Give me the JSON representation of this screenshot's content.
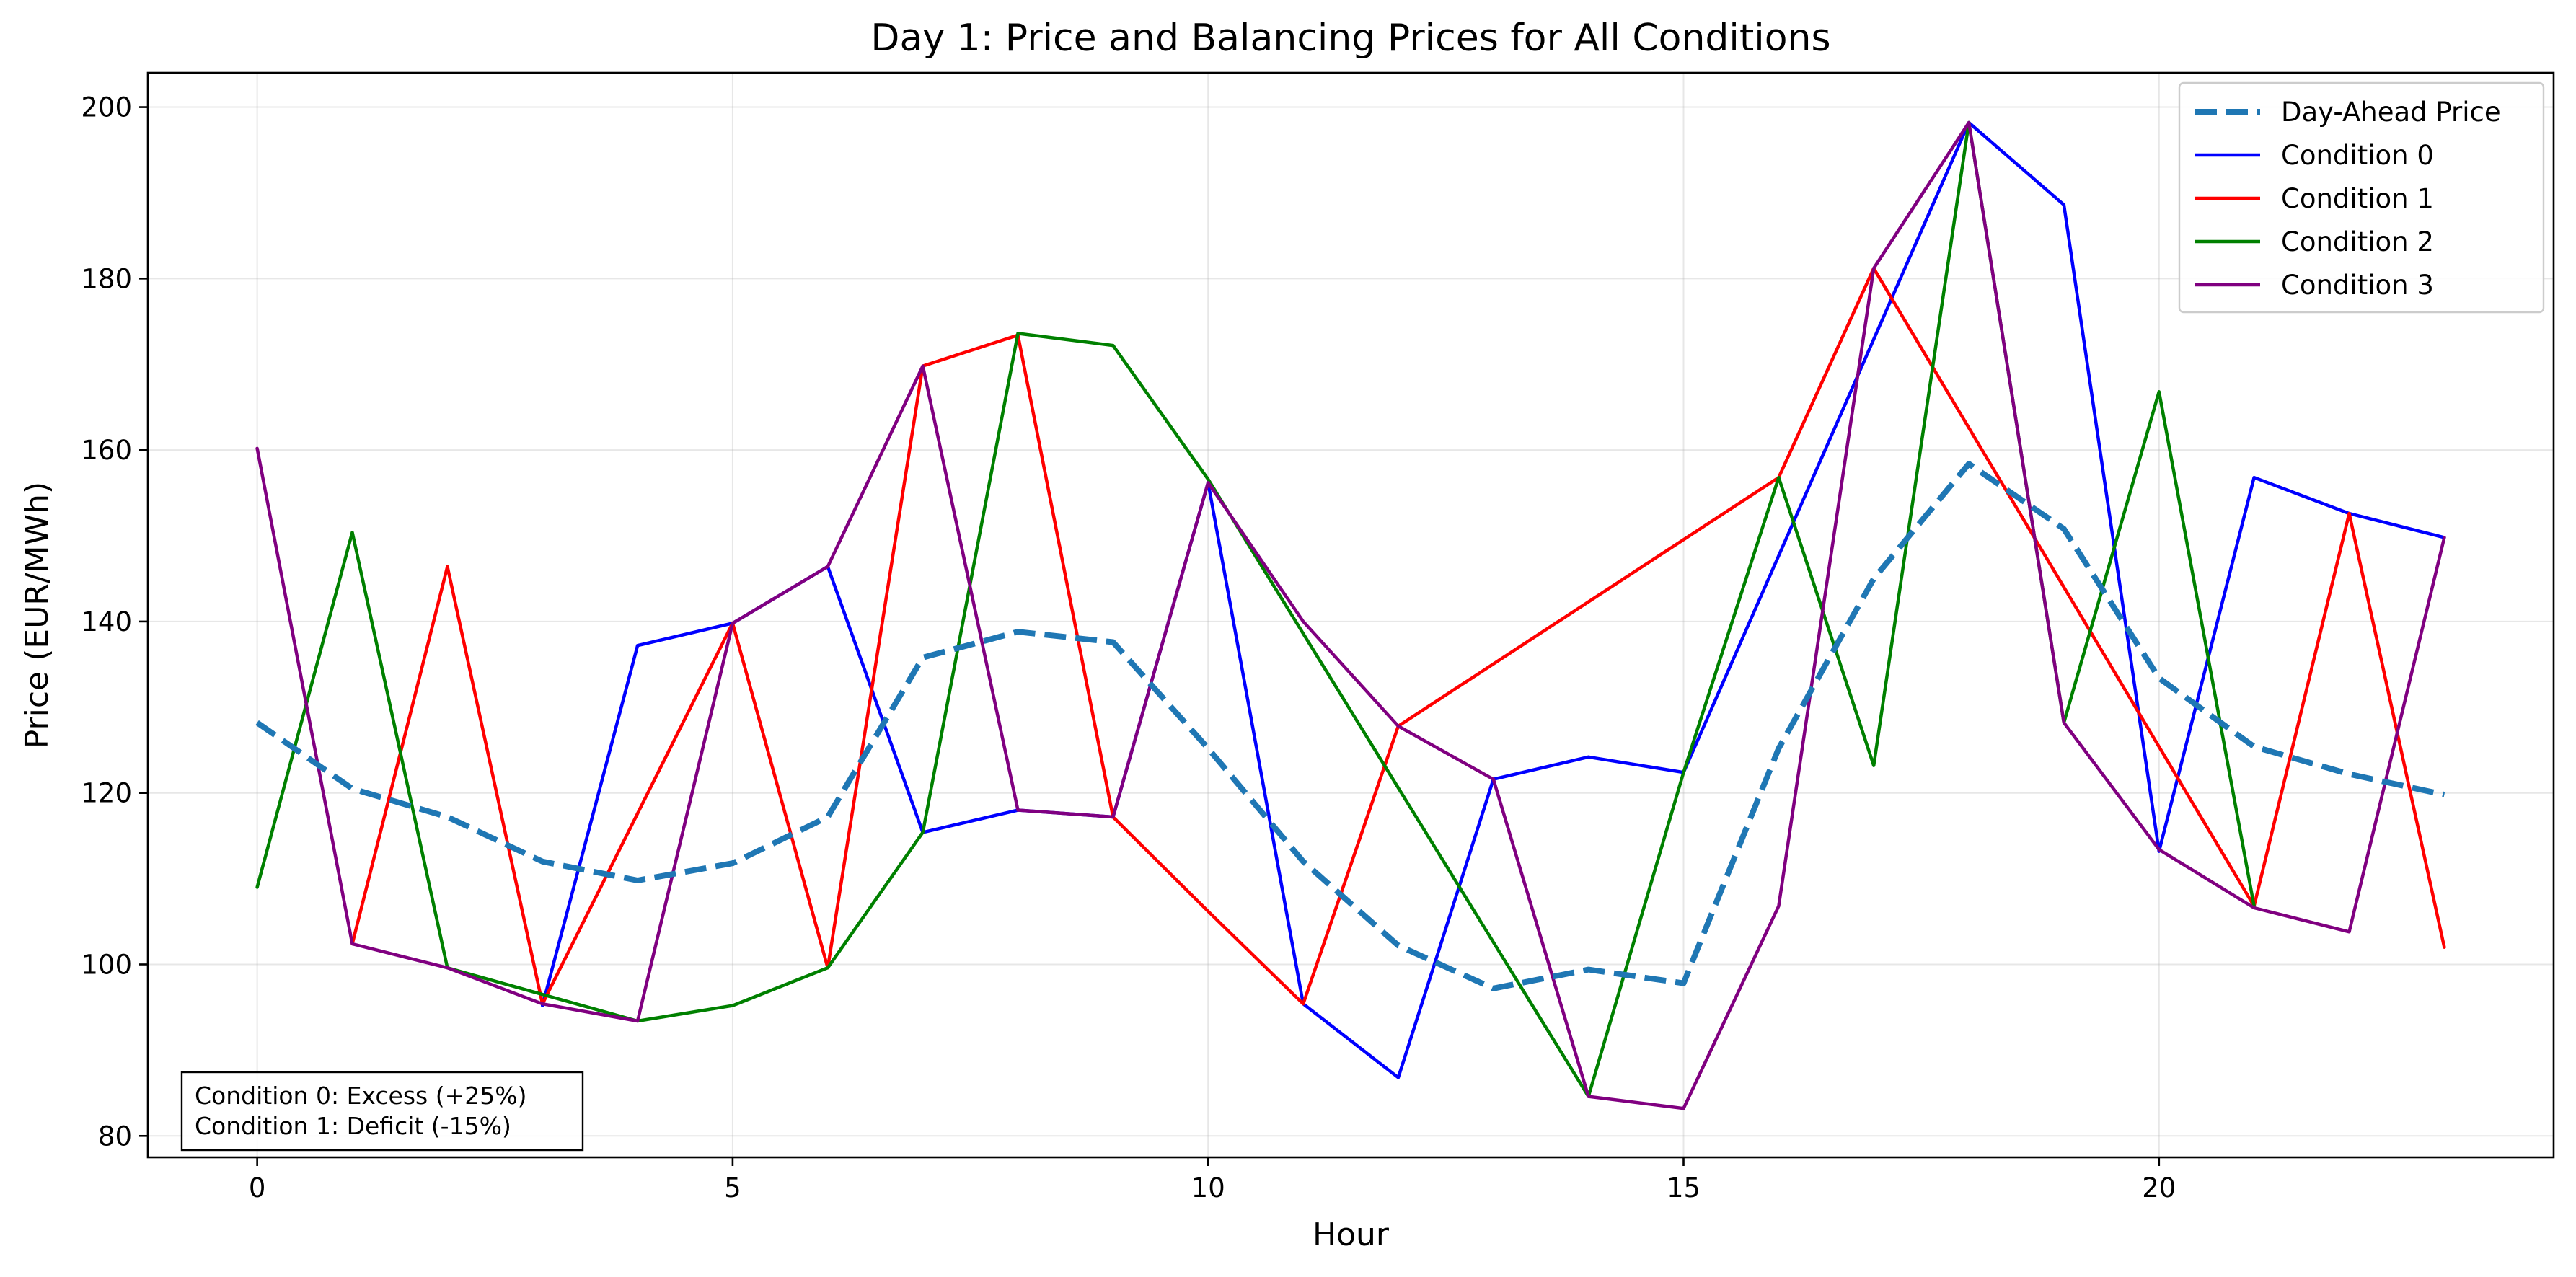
{
  "chart_data": {
    "type": "line",
    "title": "Day 1: Price and Balancing Prices for All Conditions",
    "xlabel": "Hour",
    "ylabel": "Price (EUR/MWh)",
    "xlim": [
      -1.15,
      24.15
    ],
    "ylim": [
      77.5,
      204
    ],
    "xticks": [
      0,
      5,
      10,
      15,
      20
    ],
    "yticks": [
      80,
      100,
      120,
      140,
      160,
      180,
      200
    ],
    "grid": true,
    "legend_position": "top-right",
    "x": [
      0,
      1,
      2,
      3,
      4,
      5,
      6,
      7,
      8,
      9,
      10,
      11,
      12,
      13,
      14,
      15,
      16,
      17,
      18,
      19,
      20,
      21,
      22,
      23
    ],
    "series": [
      {
        "name": "Day-Ahead Price",
        "color": "#1f77b4",
        "style": "dashed",
        "values": [
          128.2,
          120.5,
          117.2,
          112.0,
          109.8,
          111.8,
          117.2,
          135.8,
          138.8,
          137.6,
          125.2,
          112.0,
          102.2,
          97.2,
          99.4,
          97.8,
          125.2,
          145.0,
          158.4,
          150.8,
          133.4,
          125.4,
          122.2,
          119.8
        ]
      },
      {
        "name": "Condition 0",
        "color": "#0000ff",
        "style": "solid",
        "values": [
          null,
          null,
          null,
          95.2,
          137.2,
          139.8,
          146.4,
          115.4,
          118.0,
          117.2,
          156.2,
          95.4,
          86.8,
          121.6,
          124.2,
          122.4,
          null,
          null,
          198.2,
          188.6,
          113.2,
          156.8,
          152.6,
          149.8
        ]
      },
      {
        "name": "Condition 1",
        "color": "#ff0000",
        "style": "solid",
        "values": [
          null,
          102.4,
          146.4,
          95.4,
          null,
          139.8,
          99.6,
          169.8,
          173.4,
          117.2,
          106.2,
          95.4,
          127.8,
          null,
          null,
          null,
          156.8,
          181.2,
          null,
          null,
          null,
          106.8,
          152.6,
          102.0
        ]
      },
      {
        "name": "Condition 2",
        "color": "#008000",
        "style": "solid",
        "values": [
          109.0,
          150.4,
          99.6,
          null,
          93.4,
          95.2,
          99.6,
          115.4,
          173.6,
          172.2,
          156.6,
          null,
          null,
          null,
          84.6,
          122.4,
          156.8,
          123.2,
          198.2,
          128.2,
          166.8,
          106.8,
          null,
          null
        ]
      },
      {
        "name": "Condition 3",
        "color": "#800080",
        "style": "solid",
        "values": [
          160.2,
          102.4,
          99.6,
          95.4,
          93.4,
          139.8,
          146.4,
          169.8,
          118.0,
          117.2,
          156.2,
          140.0,
          127.8,
          121.6,
          84.6,
          83.2,
          106.8,
          181.2,
          198.2,
          128.2,
          113.4,
          106.6,
          103.8,
          149.8
        ]
      }
    ],
    "annotation": [
      "Condition 0: Excess (+25%)",
      "Condition 1: Deficit (-15%)"
    ]
  }
}
